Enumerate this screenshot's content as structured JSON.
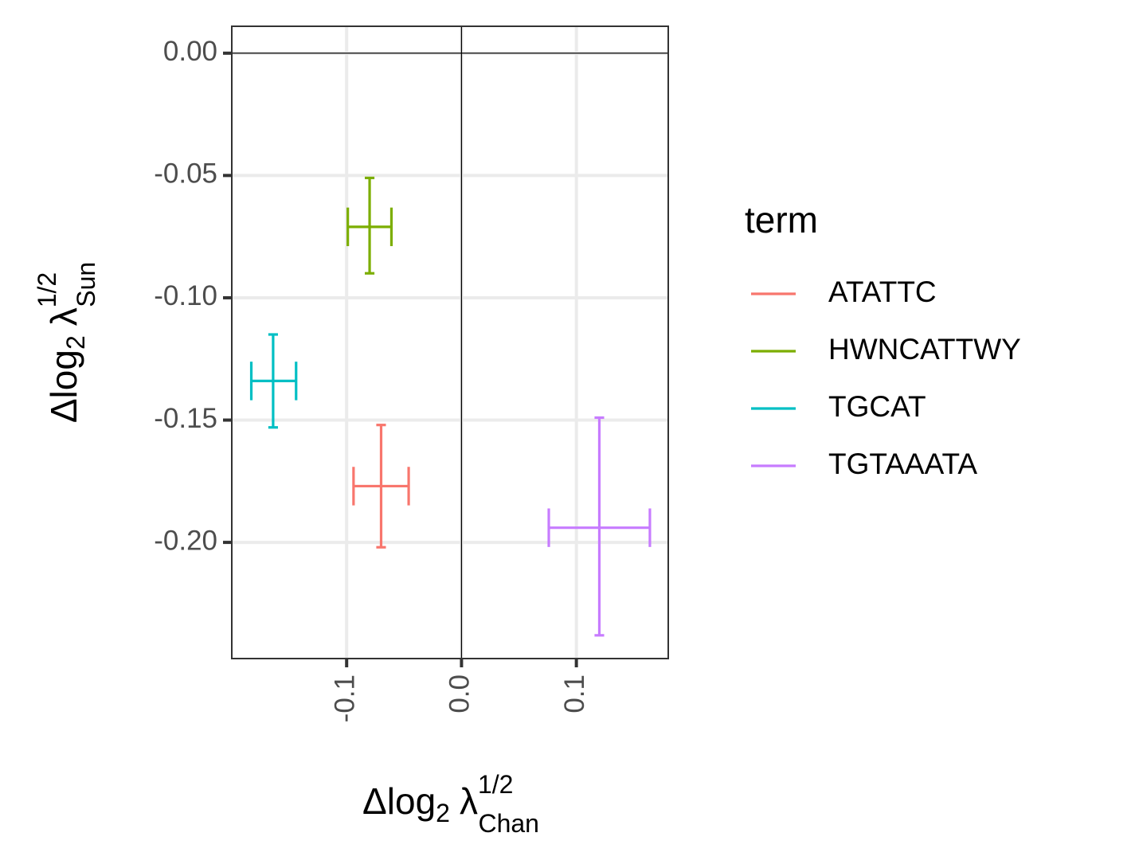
{
  "chart_data": {
    "type": "errorbar-scatter",
    "xlabel": {
      "main": "Δlog",
      "sub": "2",
      "sym": "λ",
      "sup": "1/2",
      "subscript": "Chan"
    },
    "ylabel": {
      "main": "Δlog",
      "sub": "2",
      "sym": "λ",
      "sup": "1/2",
      "subscript": "Sun"
    },
    "xlim": [
      -0.2,
      0.18
    ],
    "ylim": [
      -0.2475,
      0.011
    ],
    "x_ticks": [
      -0.1,
      0.0,
      0.1
    ],
    "x_tick_labels": [
      "-0.1",
      "0.0",
      "0.1"
    ],
    "y_ticks": [
      0.0,
      -0.05,
      -0.1,
      -0.15,
      -0.2
    ],
    "y_tick_labels": [
      "0.00",
      "-0.05",
      "-0.10",
      "-0.15",
      "-0.20"
    ],
    "reference_lines": {
      "x": 0.0,
      "y": 0.0
    },
    "grid": true,
    "legend": {
      "title": "term",
      "position": "right"
    },
    "series": [
      {
        "name": "ATATTC",
        "color": "#F8766D",
        "x": -0.07,
        "y": -0.177,
        "xmin": -0.094,
        "xmax": -0.046,
        "ymin": -0.202,
        "ymax": -0.152
      },
      {
        "name": "HWNCATTWY",
        "color": "#7CAE00",
        "x": -0.08,
        "y": -0.071,
        "xmin": -0.099,
        "xmax": -0.061,
        "ymin": -0.09,
        "ymax": -0.051
      },
      {
        "name": "TGCAT",
        "color": "#00BFC4",
        "x": -0.164,
        "y": -0.134,
        "xmin": -0.183,
        "xmax": -0.144,
        "ymin": -0.153,
        "ymax": -0.115
      },
      {
        "name": "TGTAAATA",
        "color": "#C77CFF",
        "x": 0.12,
        "y": -0.194,
        "xmin": 0.076,
        "xmax": 0.164,
        "ymin": -0.238,
        "ymax": -0.149
      }
    ]
  }
}
